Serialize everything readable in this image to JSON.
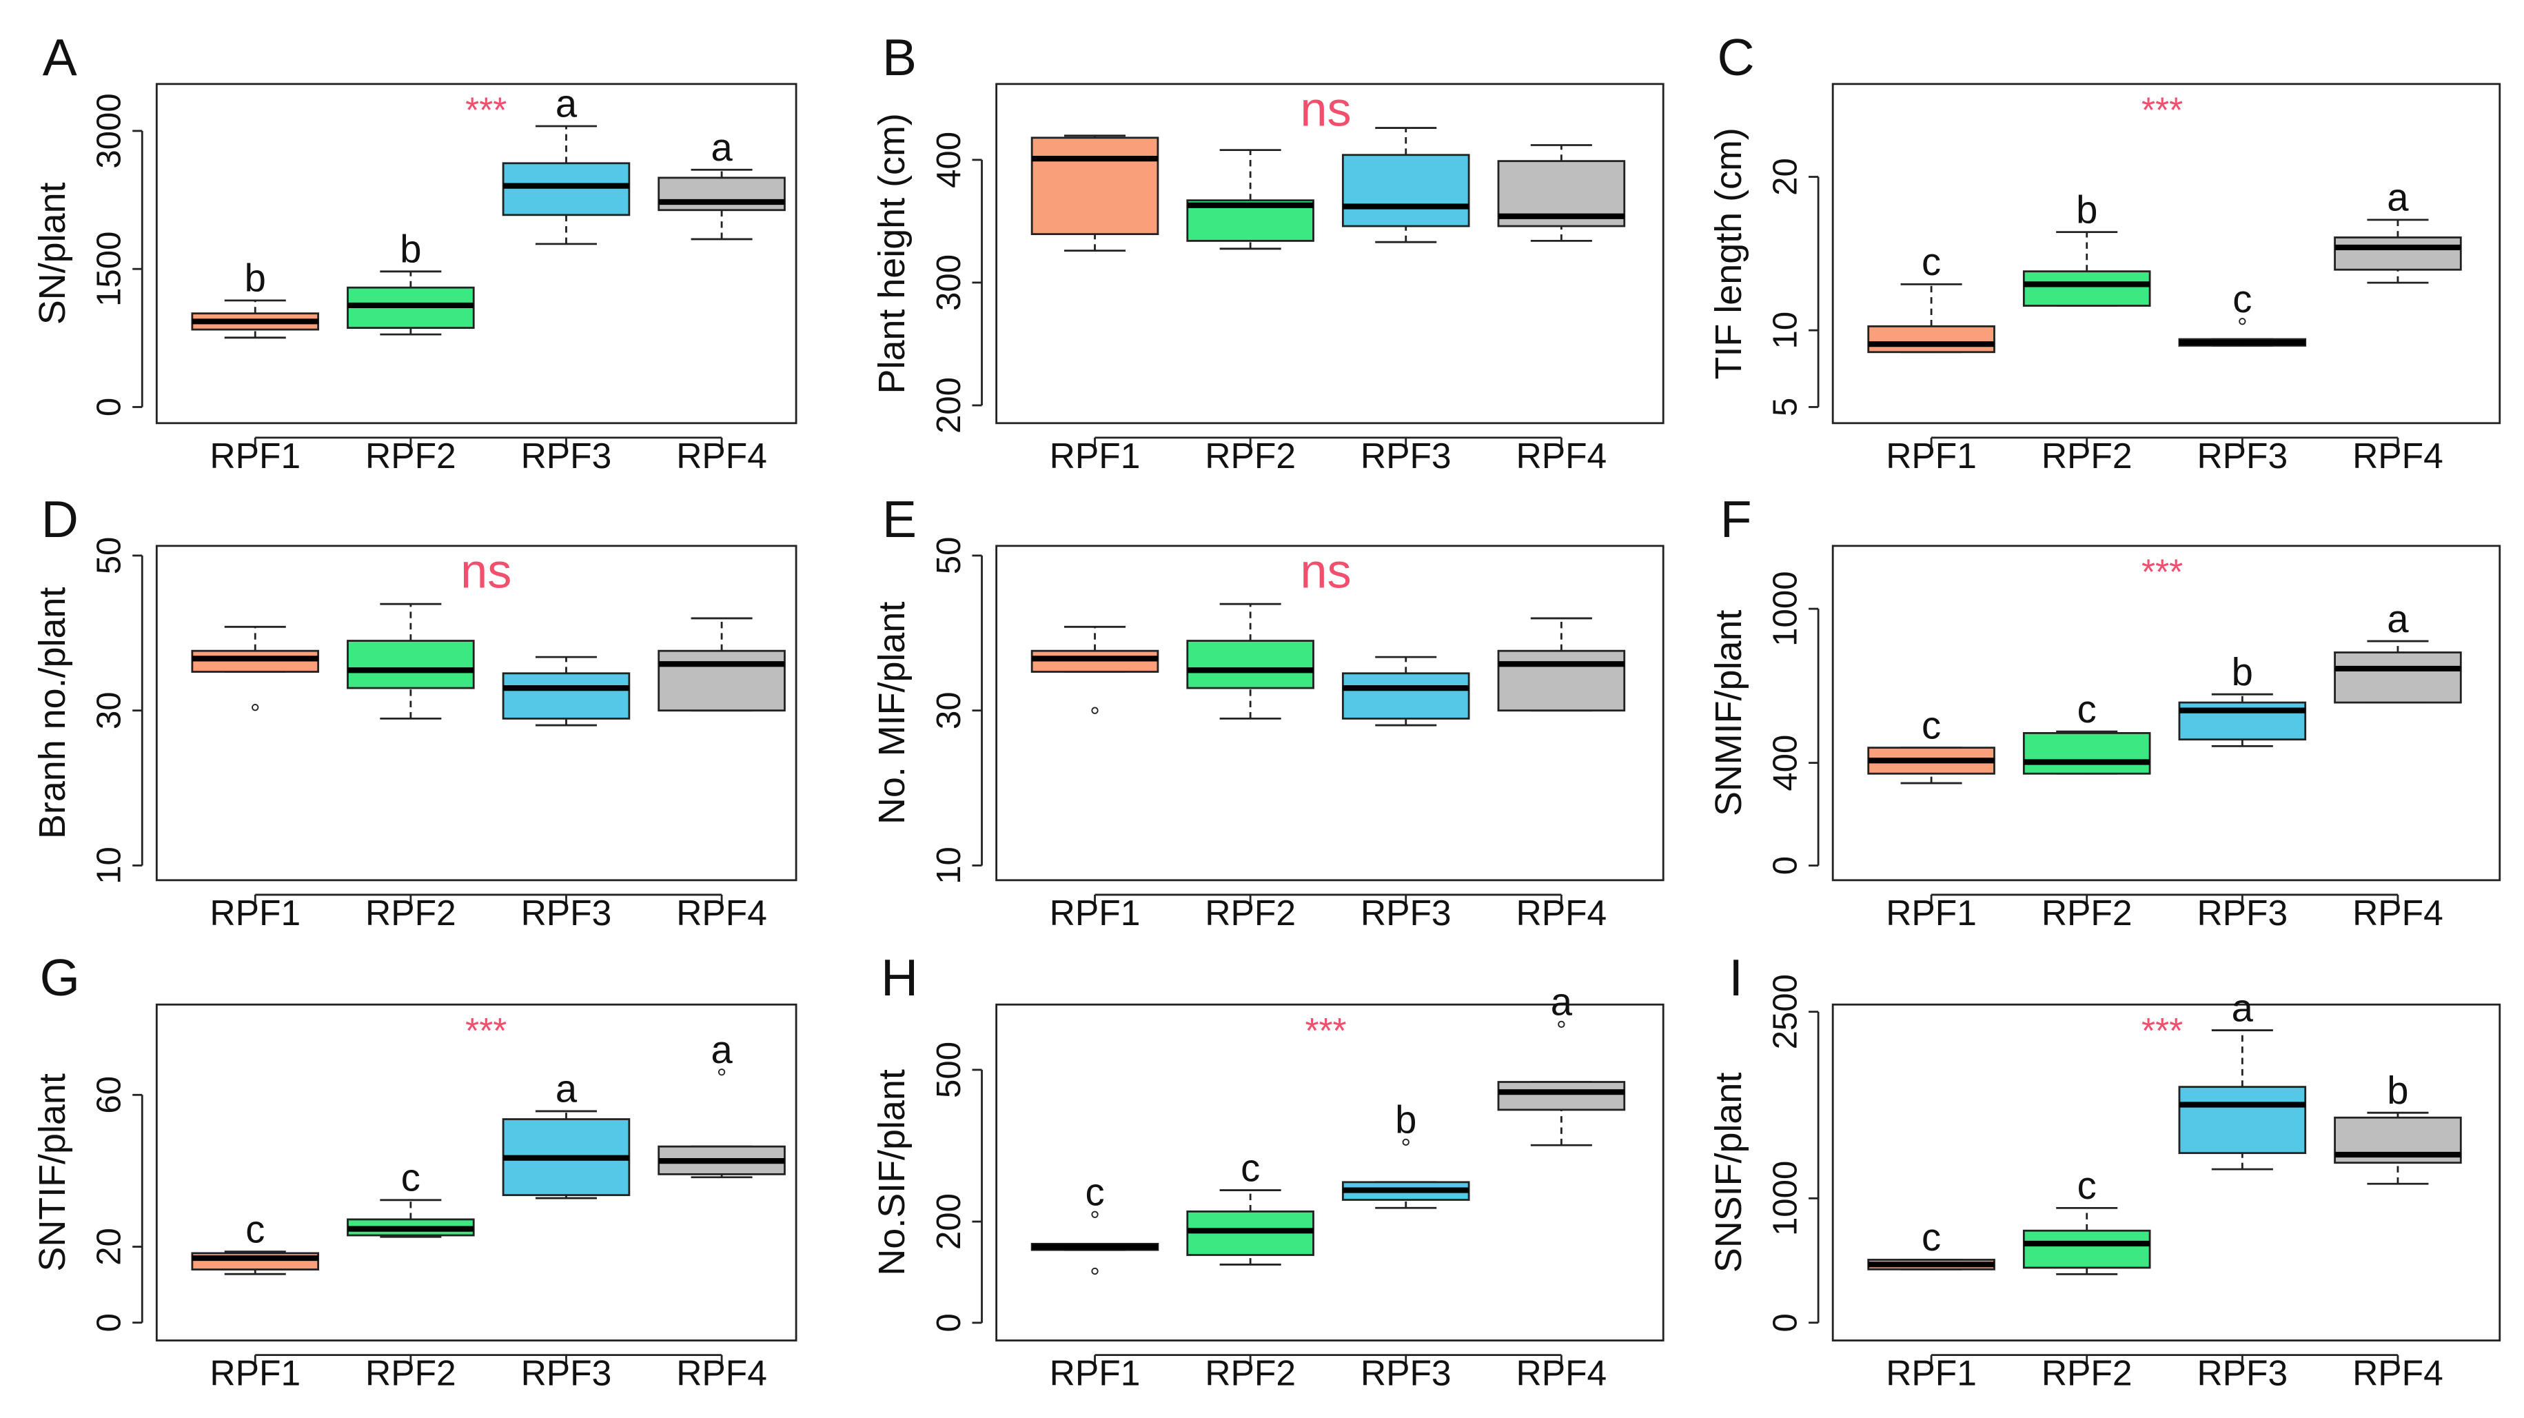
{
  "chart_data": [
    {
      "type": "box",
      "title": "A",
      "ylabel": "SN/plant",
      "annotation": "***",
      "categories": [
        "RPF1",
        "RPF2",
        "RPF3",
        "RPF4"
      ],
      "colors": [
        "#f9a07a",
        "#3ce882",
        "#55c8e8",
        "#bebebe"
      ],
      "letters": [
        "b",
        "b",
        "a",
        "a"
      ],
      "ylim": [
        -175,
        3510
      ],
      "yticks": [
        0,
        1500,
        3000
      ],
      "boxes": [
        {
          "low": 754,
          "q1": 842,
          "median": 930,
          "q3": 1017,
          "high": 1158,
          "outliers": []
        },
        {
          "low": 789,
          "q1": 860,
          "median": 1105,
          "q3": 1298,
          "high": 1473,
          "outliers": []
        },
        {
          "low": 1772,
          "q1": 2087,
          "median": 2403,
          "q3": 2649,
          "high": 3052,
          "outliers": []
        },
        {
          "low": 1824,
          "q1": 2140,
          "median": 2228,
          "q3": 2491,
          "high": 2578,
          "outliers": []
        }
      ]
    },
    {
      "type": "box",
      "title": "B",
      "ylabel": "Plant height (cm)",
      "annotation": "ns",
      "categories": [
        "RPF1",
        "RPF2",
        "RPF3",
        "RPF4"
      ],
      "colors": [
        "#f9a07a",
        "#3ce882",
        "#55c8e8",
        "#bebebe"
      ],
      "ylim": [
        185.5,
        461.8
      ],
      "yticks": [
        200,
        300,
        400
      ],
      "boxes": [
        {
          "low": 326,
          "q1": 339.5,
          "median": 401,
          "q3": 418,
          "high": 419.7,
          "outliers": []
        },
        {
          "low": 327.6,
          "q1": 334,
          "median": 363,
          "q3": 367,
          "high": 408,
          "outliers": []
        },
        {
          "low": 333,
          "q1": 346,
          "median": 362,
          "q3": 404,
          "high": 426,
          "outliers": []
        },
        {
          "low": 334,
          "q1": 346,
          "median": 354,
          "q3": 399,
          "high": 412,
          "outliers": []
        }
      ]
    },
    {
      "type": "box",
      "title": "C",
      "ylabel": "TIF length (cm)",
      "annotation": "***",
      "categories": [
        "RPF1",
        "RPF2",
        "RPF3",
        "RPF4"
      ],
      "colors": [
        "#f9a07a",
        "#3ce882",
        "#111111",
        "#bebebe"
      ],
      "letters": [
        "c",
        "b",
        "c",
        "a"
      ],
      "ylim": [
        3.95,
        26.05
      ],
      "yticks": [
        5,
        10,
        20
      ],
      "boxes": [
        {
          "low": 8.58,
          "q1": 8.58,
          "median": 9.1,
          "q3": 10.26,
          "high": 13.0,
          "outliers": []
        },
        {
          "low": 11.6,
          "q1": 11.6,
          "median": 13.0,
          "q3": 13.84,
          "high": 16.4,
          "outliers": []
        },
        {
          "low": 9.0,
          "q1": 9.0,
          "median": 9.2,
          "q3": 9.42,
          "high": 9.42,
          "outliers": [
            10.58
          ]
        },
        {
          "low": 13.1,
          "q1": 13.95,
          "median": 15.4,
          "q3": 16.05,
          "high": 17.2,
          "outliers": []
        }
      ]
    },
    {
      "type": "box",
      "title": "D",
      "ylabel": "Branh no./plant",
      "annotation": "ns",
      "categories": [
        "RPF1",
        "RPF2",
        "RPF3",
        "RPF4"
      ],
      "colors": [
        "#f9a07a",
        "#3ce882",
        "#55c8e8",
        "#bebebe"
      ],
      "ylim": [
        8.1,
        51.25
      ],
      "yticks": [
        10,
        30,
        50
      ],
      "boxes": [
        {
          "low": 35.0,
          "q1": 35.0,
          "median": 36.7,
          "q3": 37.7,
          "high": 40.8,
          "outliers": [
            30.4
          ]
        },
        {
          "low": 28.96,
          "q1": 32.9,
          "median": 35.2,
          "q3": 39.0,
          "high": 43.75,
          "outliers": []
        },
        {
          "low": 28.1,
          "q1": 28.96,
          "median": 32.9,
          "q3": 34.8,
          "high": 36.9,
          "outliers": []
        },
        {
          "low": 30.0,
          "q1": 30.0,
          "median": 36.0,
          "q3": 37.7,
          "high": 41.9,
          "outliers": []
        }
      ]
    },
    {
      "type": "box",
      "title": "E",
      "ylabel": "No. MIF/plant",
      "annotation": "ns",
      "categories": [
        "RPF1",
        "RPF2",
        "RPF3",
        "RPF4"
      ],
      "colors": [
        "#f9a07a",
        "#3ce882",
        "#55c8e8",
        "#bebebe"
      ],
      "ylim": [
        8.1,
        51.25
      ],
      "yticks": [
        10,
        30,
        50
      ],
      "boxes": [
        {
          "low": 35.0,
          "q1": 35.0,
          "median": 36.7,
          "q3": 37.7,
          "high": 40.8,
          "outliers": [
            30.0
          ]
        },
        {
          "low": 28.96,
          "q1": 32.9,
          "median": 35.2,
          "q3": 39.0,
          "high": 43.75,
          "outliers": []
        },
        {
          "low": 28.1,
          "q1": 28.96,
          "median": 32.9,
          "q3": 34.8,
          "high": 36.9,
          "outliers": []
        },
        {
          "low": 30.0,
          "q1": 30.0,
          "median": 36.0,
          "q3": 37.7,
          "high": 41.9,
          "outliers": []
        }
      ]
    },
    {
      "type": "box",
      "title": "F",
      "ylabel": "SNMIF/plant",
      "annotation": "***",
      "categories": [
        "RPF1",
        "RPF2",
        "RPF3",
        "RPF4"
      ],
      "colors": [
        "#f9a07a",
        "#3ce882",
        "#55c8e8",
        "#bebebe"
      ],
      "letters": [
        "c",
        "c",
        "b",
        "a"
      ],
      "ylim": [
        -57,
        1245
      ],
      "yticks": [
        0,
        400,
        1000
      ],
      "boxes": [
        {
          "low": 321,
          "q1": 358,
          "median": 409,
          "q3": 459,
          "high": 459,
          "outliers": []
        },
        {
          "low": 358,
          "q1": 358,
          "median": 403,
          "q3": 516,
          "high": 522,
          "outliers": []
        },
        {
          "low": 465,
          "q1": 491,
          "median": 604,
          "q3": 635,
          "high": 667,
          "outliers": []
        },
        {
          "low": 635,
          "q1": 635,
          "median": 767,
          "q3": 830,
          "high": 874,
          "outliers": []
        }
      ]
    },
    {
      "type": "box",
      "title": "G",
      "ylabel": "SNTIF/plant",
      "annotation": "***",
      "categories": [
        "RPF1",
        "RPF2",
        "RPF3",
        "RPF4"
      ],
      "colors": [
        "#f9a07a",
        "#3ce882",
        "#55c8e8",
        "#bebebe"
      ],
      "letters": [
        "c",
        "c",
        "a",
        "a"
      ],
      "ylim": [
        -4.7,
        83.8
      ],
      "yticks": [
        0,
        20,
        60
      ],
      "boxes": [
        {
          "low": 12.8,
          "q1": 14.0,
          "median": 17.0,
          "q3": 18.3,
          "high": 18.7,
          "outliers": []
        },
        {
          "low": 22.6,
          "q1": 23.0,
          "median": 24.7,
          "q3": 27.2,
          "high": 32.3,
          "outliers": []
        },
        {
          "low": 32.8,
          "q1": 33.6,
          "median": 43.4,
          "q3": 53.6,
          "high": 55.7,
          "outliers": []
        },
        {
          "low": 38.3,
          "q1": 39.1,
          "median": 42.6,
          "q3": 46.4,
          "high": 46.4,
          "outliers": [
            66
          ]
        }
      ]
    },
    {
      "type": "box",
      "title": "H",
      "ylabel": "No.SIF/plant",
      "annotation": "***",
      "categories": [
        "RPF1",
        "RPF2",
        "RPF3",
        "RPF4"
      ],
      "colors": [
        "#111111",
        "#3ce882",
        "#55c8e8",
        "#bebebe"
      ],
      "letters": [
        "c",
        "c",
        "b",
        "a"
      ],
      "ylim": [
        -35,
        629
      ],
      "yticks": [
        0,
        200,
        500
      ],
      "boxes": [
        {
          "low": 144,
          "q1": 144,
          "median": 150,
          "q3": 156,
          "high": 156,
          "outliers": [
            214,
            102
          ]
        },
        {
          "low": 115,
          "q1": 134,
          "median": 182,
          "q3": 220,
          "high": 262,
          "outliers": []
        },
        {
          "low": 227,
          "q1": 243,
          "median": 262,
          "q3": 278,
          "high": 278,
          "outliers": [
            357
          ]
        },
        {
          "low": 351,
          "q1": 421,
          "median": 456,
          "q3": 476,
          "high": 476,
          "outliers": [
            590
          ]
        }
      ]
    },
    {
      "type": "box",
      "title": "I",
      "ylabel": "SNSIF/plant",
      "annotation": "***",
      "categories": [
        "RPF1",
        "RPF2",
        "RPF3",
        "RPF4"
      ],
      "colors": [
        "#f9a07a",
        "#3ce882",
        "#55c8e8",
        "#bebebe"
      ],
      "letters": [
        "c",
        "c",
        "a",
        "b"
      ],
      "ylim": [
        -143,
        2558
      ],
      "yticks": [
        0,
        1000,
        2500
      ],
      "boxes": [
        {
          "low": 429,
          "q1": 429,
          "median": 468,
          "q3": 506,
          "high": 506,
          "outliers": []
        },
        {
          "low": 390,
          "q1": 442,
          "median": 636,
          "q3": 740,
          "high": 922,
          "outliers": []
        },
        {
          "low": 1234,
          "q1": 1364,
          "median": 1753,
          "q3": 1896,
          "high": 2351,
          "outliers": []
        },
        {
          "low": 1117,
          "q1": 1286,
          "median": 1351,
          "q3": 1649,
          "high": 1688,
          "outliers": []
        }
      ]
    }
  ]
}
